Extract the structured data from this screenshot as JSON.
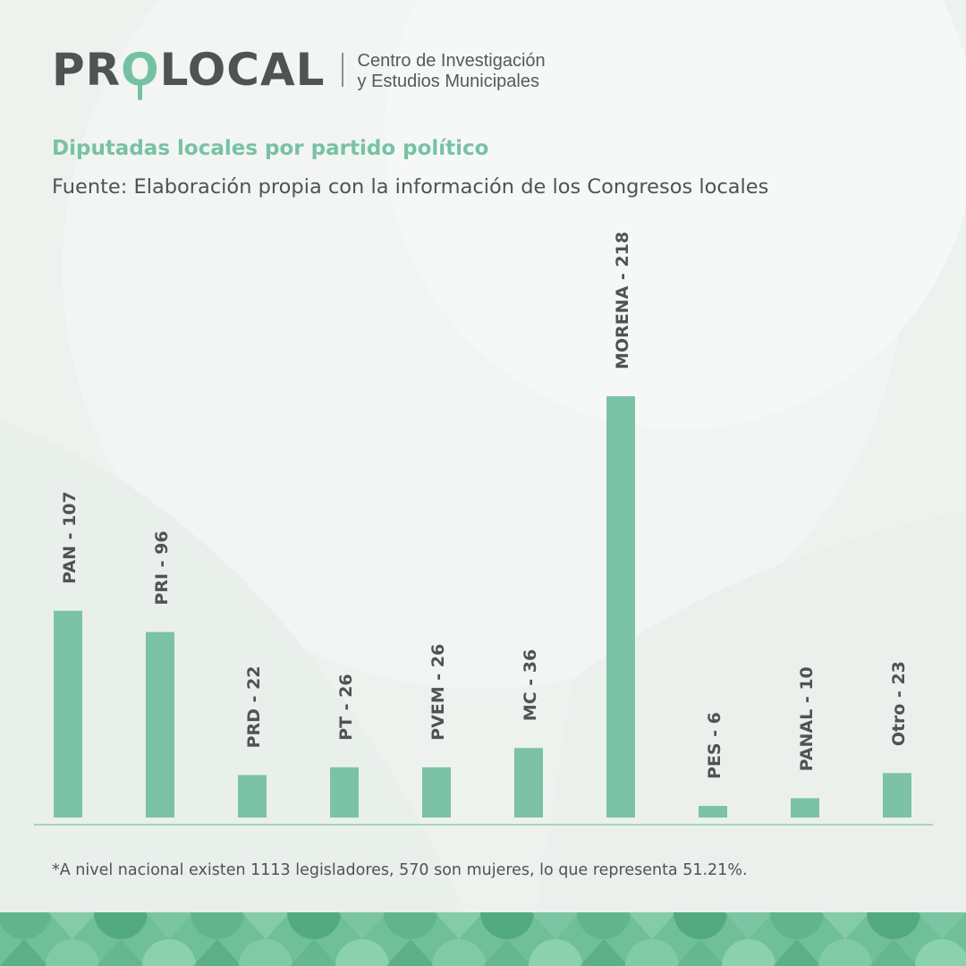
{
  "brand": {
    "name_left": "PR",
    "name_o": "O",
    "name_right": "LOCAL",
    "tagline_line1": "Centro de Investigación",
    "tagline_line2": "y Estudios Municipales"
  },
  "colors": {
    "accent": "#7cc2a6",
    "text": "#4f5352",
    "background": "#eef2ef"
  },
  "note": "*A nivel nacional existen 1113 legisladores, 570 son mujeres, lo que representa 51.21%.",
  "chart_data": {
    "type": "bar",
    "title": "Diputadas locales por partido político",
    "subtitle": "Fuente: Elaboración propia con la información de los Congresos locales",
    "categories": [
      "PAN",
      "PRI",
      "PRD",
      "PT",
      "PVEM",
      "MC",
      "MORENA",
      "PES",
      "PANAL",
      "Otro"
    ],
    "values": [
      107,
      96,
      22,
      26,
      26,
      36,
      218,
      6,
      10,
      23
    ],
    "data_labels": [
      "PAN - 107",
      "PRI - 96",
      "PRD - 22",
      "PT - 26",
      "PVEM - 26",
      "MC - 36",
      "MORENA - 218",
      "PES - 6",
      "PANAL - 10",
      "Otro - 23"
    ],
    "label_orientation": "vertical",
    "grid": false,
    "legend": "none",
    "ylim": [
      0,
      218
    ],
    "bar_color": "#7cc2a6"
  }
}
